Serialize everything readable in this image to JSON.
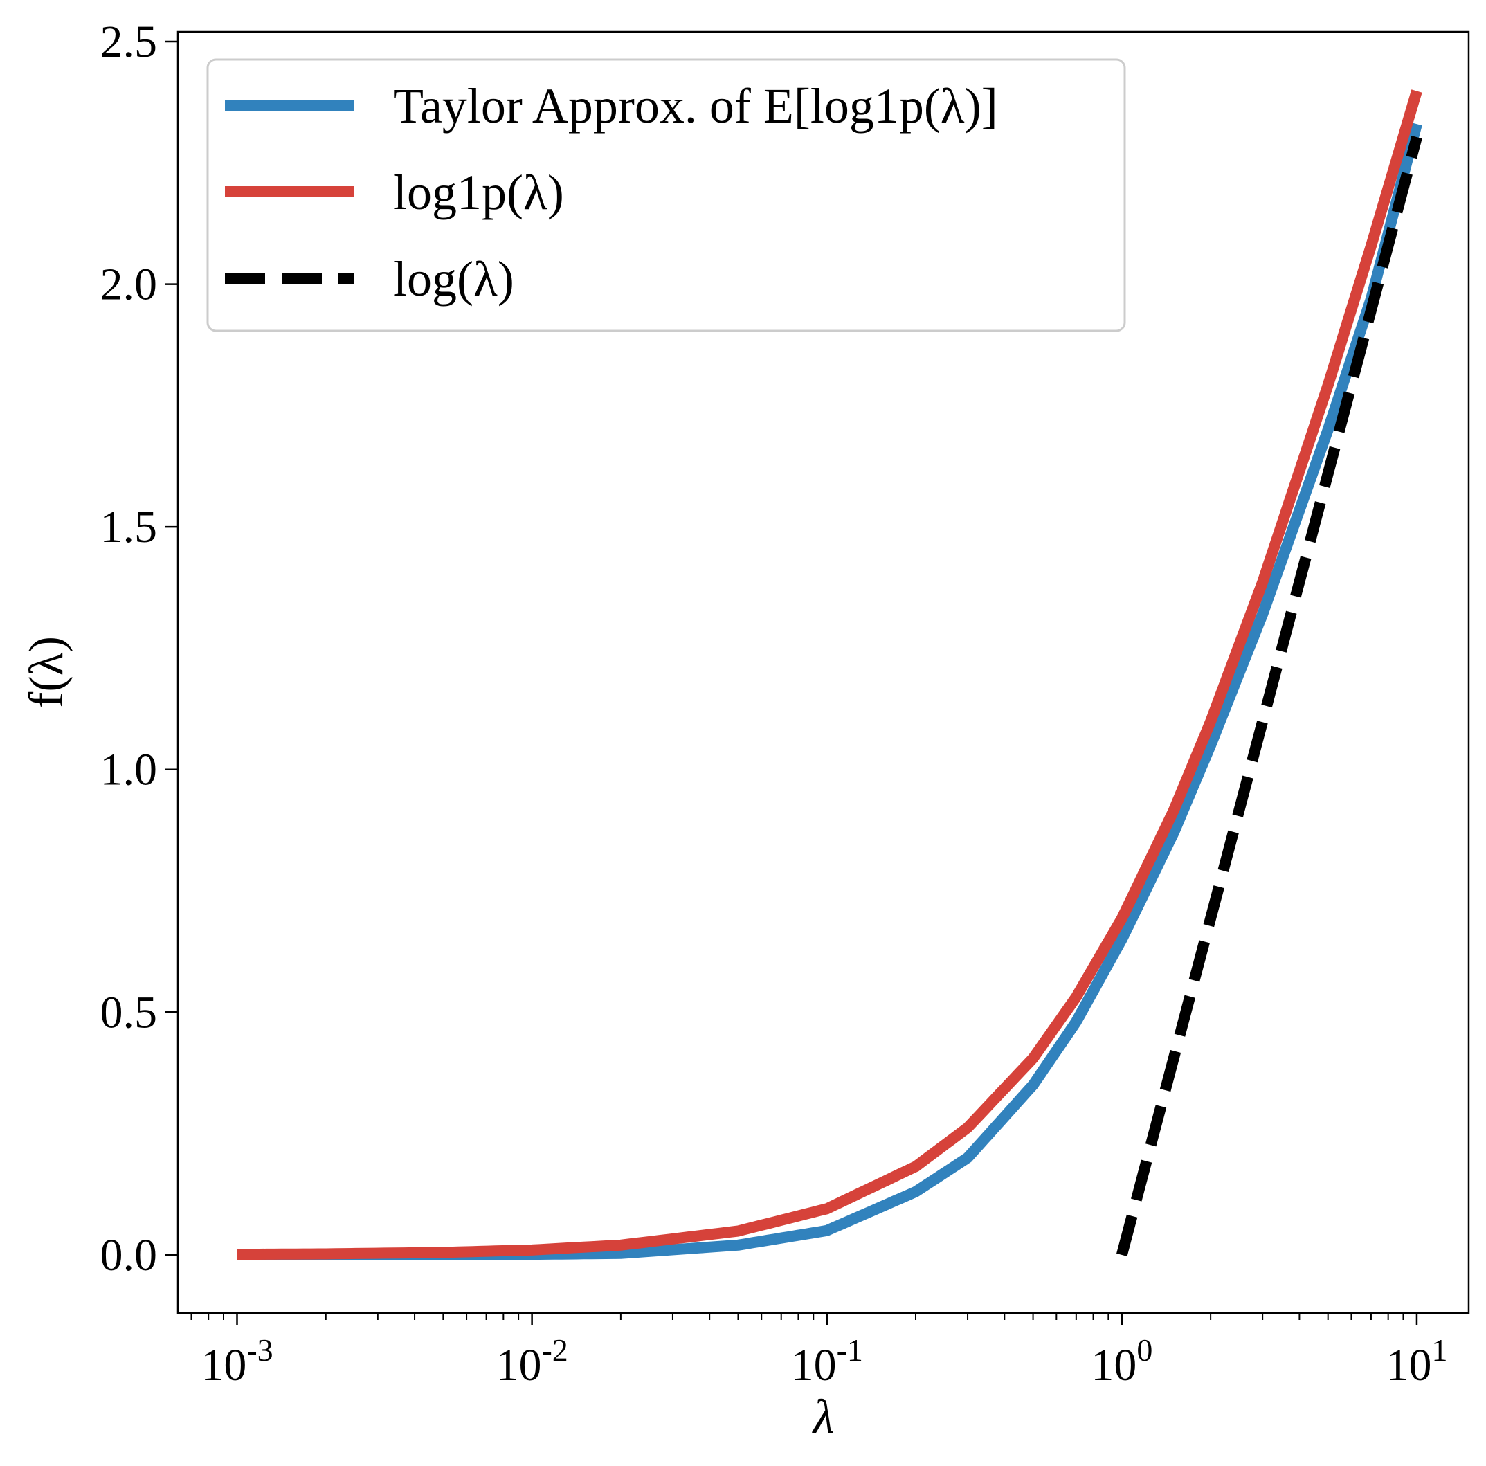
{
  "chart_data": {
    "type": "line",
    "xlabel": "λ",
    "ylabel": "f(λ)",
    "x_scale": "log",
    "xlim": [
      0.00063,
      15.0
    ],
    "ylim": [
      -0.12,
      2.52
    ],
    "grid": false,
    "legend_position": "top-left",
    "x_ticks": [
      {
        "value": 0.001,
        "base": "10",
        "exp": "-3"
      },
      {
        "value": 0.01,
        "base": "10",
        "exp": "-2"
      },
      {
        "value": 0.1,
        "base": "10",
        "exp": "-1"
      },
      {
        "value": 1,
        "base": "10",
        "exp": "0"
      },
      {
        "value": 10,
        "base": "10",
        "exp": "1"
      }
    ],
    "y_ticks": [
      {
        "value": 0.0,
        "label": "0.0"
      },
      {
        "value": 0.5,
        "label": "0.5"
      },
      {
        "value": 1.0,
        "label": "1.0"
      },
      {
        "value": 1.5,
        "label": "1.5"
      },
      {
        "value": 2.0,
        "label": "2.0"
      },
      {
        "value": 2.5,
        "label": "2.5"
      }
    ],
    "series": [
      {
        "name": "Taylor Approx. of E[log1p(λ)]",
        "color": "#3182bd",
        "dash": "solid",
        "x": [
          0.001,
          0.002,
          0.005,
          0.01,
          0.02,
          0.05,
          0.1,
          0.2,
          0.3,
          0.5,
          0.7,
          1.0,
          1.5,
          2.0,
          3.0,
          5.0,
          7.0,
          10.0
        ],
        "y": [
          0.0,
          0.0,
          0.0,
          0.001,
          0.003,
          0.02,
          0.05,
          0.13,
          0.2,
          0.35,
          0.48,
          0.65,
          0.87,
          1.05,
          1.32,
          1.7,
          1.97,
          2.33
        ]
      },
      {
        "name": "log1p(λ)",
        "color": "#d6423a",
        "dash": "solid",
        "x": [
          0.001,
          0.002,
          0.005,
          0.01,
          0.02,
          0.05,
          0.1,
          0.2,
          0.3,
          0.5,
          0.7,
          1.0,
          1.5,
          2.0,
          3.0,
          5.0,
          7.0,
          10.0
        ],
        "y": [
          0.001,
          0.002,
          0.005,
          0.01,
          0.02,
          0.049,
          0.095,
          0.182,
          0.262,
          0.405,
          0.531,
          0.693,
          0.916,
          1.099,
          1.386,
          1.792,
          2.079,
          2.398
        ]
      },
      {
        "name": "log(λ)",
        "color": "#000000",
        "dash": "dashed",
        "x": [
          1.0,
          10.0
        ],
        "y": [
          0.0,
          2.303
        ]
      }
    ]
  }
}
